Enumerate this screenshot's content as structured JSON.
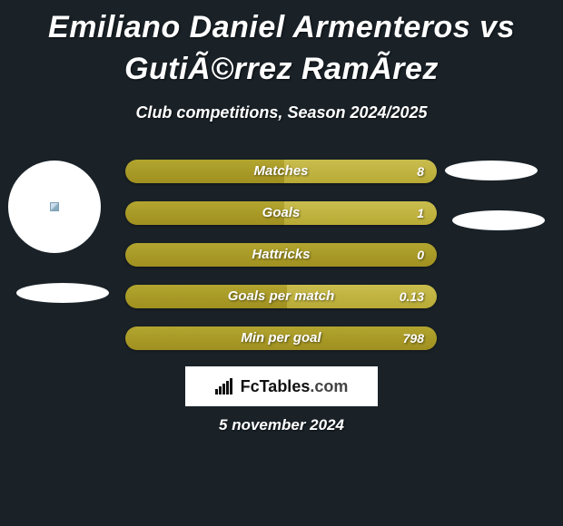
{
  "title": "Emiliano Daniel Armenteros vs GutiÃ©rrez RamÃ­rez",
  "subtitle": "Club competitions, Season 2024/2025",
  "date_text": "5 november 2024",
  "brand": {
    "name": "FcTables",
    "suffix": ".com"
  },
  "bar_style": {
    "height": 26,
    "radius": 13,
    "gap": 20,
    "fill_color": "#a69726",
    "rest_color": "#bdb03f",
    "text_color": "#ffffff",
    "fontsize": 15
  },
  "stats": [
    {
      "label": "Matches",
      "value": "8",
      "fill_pct": 51
    },
    {
      "label": "Goals",
      "value": "1",
      "fill_pct": 51
    },
    {
      "label": "Hattricks",
      "value": "0",
      "fill_pct": 100
    },
    {
      "label": "Goals per match",
      "value": "0.13",
      "fill_pct": 52
    },
    {
      "label": "Min per goal",
      "value": "798",
      "fill_pct": 100
    }
  ],
  "background_color": "#1a2228",
  "decoration_color": "#ffffff"
}
